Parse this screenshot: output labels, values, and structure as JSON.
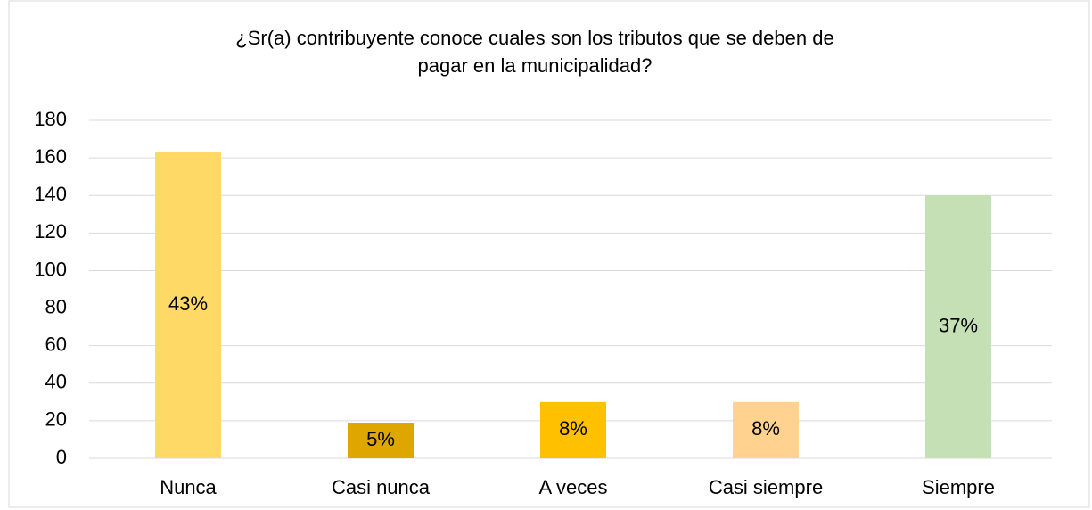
{
  "chart_data": {
    "type": "bar",
    "title_lines": [
      "¿Sr(a) contribuyente  conoce cuales son los tributos que se deben de",
      "pagar en la municipalidad?"
    ],
    "categories": [
      "Nunca",
      "Casi nunca",
      "A veces",
      "Casi siempre",
      "Siempre"
    ],
    "values": [
      163,
      19,
      30,
      30,
      140
    ],
    "colors": [
      "#FFD966",
      "#DFA600",
      "#FFC000",
      "#FFD38F",
      "#C5E0B4"
    ],
    "shares": [
      43,
      5,
      8,
      8,
      37
    ],
    "share_labels": [
      "43%",
      "5%",
      "8%",
      "8%",
      "37%"
    ],
    "ylim": [
      0,
      180
    ],
    "yticks": [
      0,
      20,
      40,
      60,
      80,
      100,
      120,
      140,
      160,
      180
    ],
    "grid": true
  }
}
